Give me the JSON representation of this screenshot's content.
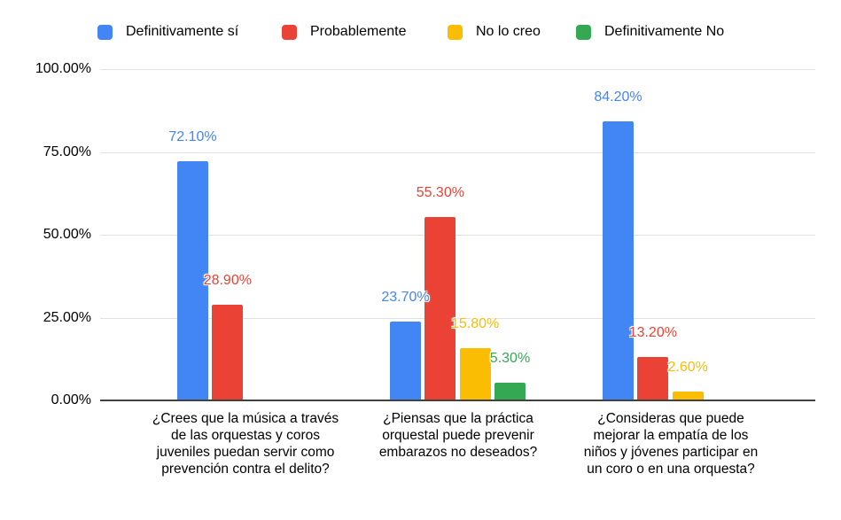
{
  "chart_data": {
    "type": "bar",
    "title": "",
    "legend_position": "top",
    "grid": true,
    "ylim": [
      0,
      100
    ],
    "yticks": [
      {
        "label": "100.00%",
        "value": 100
      },
      {
        "label": "75.00%",
        "value": 75
      },
      {
        "label": "50.00%",
        "value": 50
      },
      {
        "label": "25.00%",
        "value": 25
      },
      {
        "label": "0.00%",
        "value": 0
      }
    ],
    "categories": [
      "¿Crees que la música a través de las orquestas y coros juveniles puedan servir como prevención contra el delito?",
      "¿Piensas que la práctica orquestal puede prevenir embarazos no deseados?",
      "¿Consideras que puede mejorar la empatía de los niños y jóvenes participar en un coro o en una orquesta?"
    ],
    "series": [
      {
        "name": "Definitivamente sí",
        "color": "#4285F4",
        "values": [
          72.1,
          23.7,
          84.2
        ],
        "labels": [
          "72.10%",
          "23.70%",
          "84.20%"
        ]
      },
      {
        "name": "Probablemente",
        "color": "#EA4335",
        "values": [
          28.9,
          55.3,
          13.2
        ],
        "labels": [
          "28.90%",
          "55.30%",
          "13.20%"
        ]
      },
      {
        "name": "No lo creo",
        "color": "#FBBC04",
        "values": [
          0,
          15.8,
          2.6
        ],
        "labels": [
          "",
          "15.80%",
          "2.60%"
        ]
      },
      {
        "name": "Definitivamente No",
        "color": "#34A853",
        "values": [
          0,
          5.3,
          0
        ],
        "labels": [
          "",
          "5.30%",
          ""
        ]
      }
    ]
  },
  "colors": {
    "background": "#ffffff",
    "grid": "#e0e0e0",
    "axis": "#424242",
    "text": "#000000"
  }
}
